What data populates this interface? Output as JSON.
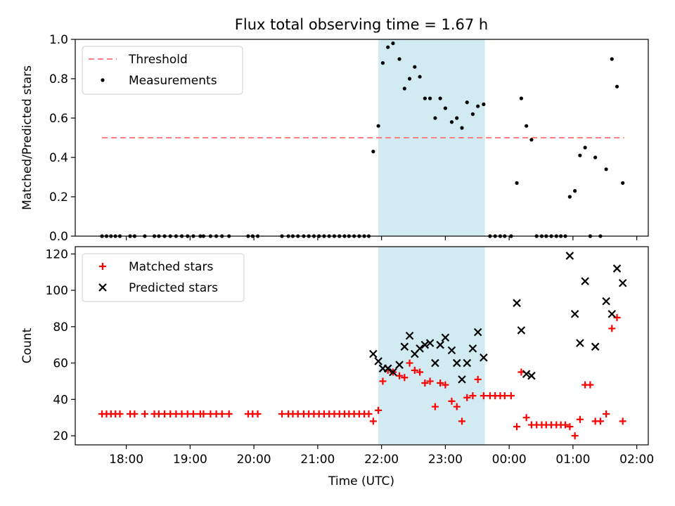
{
  "chart_data": {
    "title": "Flux total observing time = 1.67 h",
    "xlabel": "Time (UTC)",
    "x_ticks": [
      {
        "h": 18,
        "label": "18:00"
      },
      {
        "h": 19,
        "label": "19:00"
      },
      {
        "h": 20,
        "label": "20:00"
      },
      {
        "h": 21,
        "label": "21:00"
      },
      {
        "h": 22,
        "label": "22:00"
      },
      {
        "h": 23,
        "label": "23:00"
      },
      {
        "h": 24,
        "label": "00:00"
      },
      {
        "h": 25,
        "label": "01:00"
      },
      {
        "h": 26,
        "label": "02:00"
      }
    ],
    "xlim": [
      17.2,
      26.18
    ],
    "highlight": {
      "start": 21.95,
      "end": 23.62,
      "color": "#add8e6"
    },
    "panels": [
      {
        "type": "scatter",
        "ylabel": "Matched/Predicted stars",
        "ylim": [
          0,
          1.0
        ],
        "y_ticks": [
          0.0,
          0.2,
          0.4,
          0.6,
          0.8,
          1.0
        ],
        "y_tick_labels": [
          "0.0",
          "0.2",
          "0.4",
          "0.6",
          "0.8",
          "1.0"
        ],
        "legend_position": "upper-left",
        "threshold": {
          "name": "Threshold",
          "value": 0.5,
          "x_range": [
            17.62,
            25.8
          ],
          "color": "#ff8080"
        },
        "series": [
          {
            "name": "Measurements",
            "color": "#000000",
            "points": [
              [
                17.62,
                0
              ],
              [
                17.69,
                0
              ],
              [
                17.76,
                0
              ],
              [
                17.83,
                0
              ],
              [
                17.9,
                0
              ],
              [
                18.06,
                0
              ],
              [
                18.13,
                0
              ],
              [
                18.29,
                0
              ],
              [
                18.44,
                0
              ],
              [
                18.51,
                0
              ],
              [
                18.6,
                0
              ],
              [
                18.69,
                0
              ],
              [
                18.78,
                0
              ],
              [
                18.87,
                0
              ],
              [
                18.96,
                0
              ],
              [
                19.05,
                0
              ],
              [
                19.16,
                0
              ],
              [
                19.21,
                0
              ],
              [
                19.32,
                0
              ],
              [
                19.41,
                0
              ],
              [
                19.5,
                0
              ],
              [
                19.61,
                0
              ],
              [
                19.91,
                0
              ],
              [
                19.98,
                0
              ],
              [
                20.06,
                0
              ],
              [
                20.44,
                0
              ],
              [
                20.54,
                0
              ],
              [
                20.61,
                0
              ],
              [
                20.69,
                0
              ],
              [
                20.78,
                0
              ],
              [
                20.86,
                0
              ],
              [
                20.94,
                0
              ],
              [
                21.02,
                0
              ],
              [
                21.1,
                0
              ],
              [
                21.18,
                0
              ],
              [
                21.26,
                0
              ],
              [
                21.34,
                0
              ],
              [
                21.42,
                0
              ],
              [
                21.49,
                0
              ],
              [
                21.57,
                0
              ],
              [
                21.65,
                0
              ],
              [
                21.73,
                0
              ],
              [
                21.8,
                0
              ],
              [
                21.87,
                0.43
              ],
              [
                21.95,
                0.56
              ],
              [
                22.02,
                0.88
              ],
              [
                22.1,
                0.96
              ],
              [
                22.18,
                0.98
              ],
              [
                22.28,
                0.9
              ],
              [
                22.36,
                0.75
              ],
              [
                22.44,
                0.8
              ],
              [
                22.52,
                0.86
              ],
              [
                22.6,
                0.81
              ],
              [
                22.68,
                0.7
              ],
              [
                22.76,
                0.7
              ],
              [
                22.84,
                0.6
              ],
              [
                22.92,
                0.7
              ],
              [
                23.0,
                0.65
              ],
              [
                23.1,
                0.58
              ],
              [
                23.18,
                0.6
              ],
              [
                23.26,
                0.55
              ],
              [
                23.34,
                0.68
              ],
              [
                23.43,
                0.62
              ],
              [
                23.51,
                0.66
              ],
              [
                23.6,
                0.67
              ],
              [
                23.7,
                0
              ],
              [
                23.78,
                0
              ],
              [
                23.86,
                0
              ],
              [
                23.93,
                0
              ],
              [
                24.03,
                0
              ],
              [
                24.12,
                0.27
              ],
              [
                24.19,
                0.7
              ],
              [
                24.27,
                0.56
              ],
              [
                24.35,
                0.49
              ],
              [
                24.43,
                0
              ],
              [
                24.51,
                0
              ],
              [
                24.58,
                0
              ],
              [
                24.66,
                0
              ],
              [
                24.74,
                0
              ],
              [
                24.81,
                0
              ],
              [
                24.88,
                0
              ],
              [
                24.95,
                0.2
              ],
              [
                25.03,
                0.23
              ],
              [
                25.11,
                0.41
              ],
              [
                25.19,
                0.45
              ],
              [
                25.27,
                0
              ],
              [
                25.35,
                0.4
              ],
              [
                25.43,
                0
              ],
              [
                25.52,
                0.34
              ],
              [
                25.61,
                0.9
              ],
              [
                25.69,
                0.76
              ],
              [
                25.78,
                0.27
              ]
            ]
          }
        ]
      },
      {
        "type": "scatter",
        "ylabel": "Count",
        "ylim": [
          15,
          124
        ],
        "y_ticks": [
          20,
          40,
          60,
          80,
          100,
          120
        ],
        "y_tick_labels": [
          "20",
          "40",
          "60",
          "80",
          "100",
          "120"
        ],
        "legend_position": "upper-left",
        "series": [
          {
            "name": "Matched stars",
            "marker": "plus",
            "color": "#ff0000",
            "points": [
              [
                17.62,
                32
              ],
              [
                17.69,
                32
              ],
              [
                17.76,
                32
              ],
              [
                17.83,
                32
              ],
              [
                17.9,
                32
              ],
              [
                18.06,
                32
              ],
              [
                18.13,
                32
              ],
              [
                18.29,
                32
              ],
              [
                18.44,
                32
              ],
              [
                18.51,
                32
              ],
              [
                18.6,
                32
              ],
              [
                18.69,
                32
              ],
              [
                18.78,
                32
              ],
              [
                18.87,
                32
              ],
              [
                18.96,
                32
              ],
              [
                19.05,
                32
              ],
              [
                19.16,
                32
              ],
              [
                19.21,
                32
              ],
              [
                19.32,
                32
              ],
              [
                19.41,
                32
              ],
              [
                19.5,
                32
              ],
              [
                19.61,
                32
              ],
              [
                19.91,
                32
              ],
              [
                19.98,
                32
              ],
              [
                20.06,
                32
              ],
              [
                20.44,
                32
              ],
              [
                20.54,
                32
              ],
              [
                20.61,
                32
              ],
              [
                20.69,
                32
              ],
              [
                20.78,
                32
              ],
              [
                20.86,
                32
              ],
              [
                20.94,
                32
              ],
              [
                21.02,
                32
              ],
              [
                21.1,
                32
              ],
              [
                21.18,
                32
              ],
              [
                21.26,
                32
              ],
              [
                21.34,
                32
              ],
              [
                21.42,
                32
              ],
              [
                21.49,
                32
              ],
              [
                21.57,
                32
              ],
              [
                21.65,
                32
              ],
              [
                21.73,
                32
              ],
              [
                21.8,
                32
              ],
              [
                21.87,
                28
              ],
              [
                21.95,
                34
              ],
              [
                22.02,
                50
              ],
              [
                22.1,
                56
              ],
              [
                22.18,
                55
              ],
              [
                22.28,
                53
              ],
              [
                22.36,
                52
              ],
              [
                22.44,
                60
              ],
              [
                22.52,
                56
              ],
              [
                22.6,
                55
              ],
              [
                22.68,
                49
              ],
              [
                22.76,
                50
              ],
              [
                22.84,
                36
              ],
              [
                22.92,
                49
              ],
              [
                23.0,
                48
              ],
              [
                23.1,
                39
              ],
              [
                23.18,
                36
              ],
              [
                23.26,
                28
              ],
              [
                23.34,
                41
              ],
              [
                23.43,
                42
              ],
              [
                23.51,
                51
              ],
              [
                23.6,
                42
              ],
              [
                23.7,
                42
              ],
              [
                23.78,
                42
              ],
              [
                23.86,
                42
              ],
              [
                23.93,
                42
              ],
              [
                24.03,
                42
              ],
              [
                24.12,
                25
              ],
              [
                24.19,
                55
              ],
              [
                24.27,
                30
              ],
              [
                24.35,
                26
              ],
              [
                24.43,
                26
              ],
              [
                24.51,
                26
              ],
              [
                24.58,
                26
              ],
              [
                24.66,
                26
              ],
              [
                24.74,
                26
              ],
              [
                24.81,
                26
              ],
              [
                24.88,
                26
              ],
              [
                24.95,
                25
              ],
              [
                25.03,
                20
              ],
              [
                25.11,
                29
              ],
              [
                25.19,
                48
              ],
              [
                25.27,
                48
              ],
              [
                25.35,
                28
              ],
              [
                25.43,
                28
              ],
              [
                25.52,
                32
              ],
              [
                25.61,
                79
              ],
              [
                25.69,
                85
              ],
              [
                25.78,
                28
              ]
            ]
          },
          {
            "name": "Predicted stars",
            "marker": "x",
            "color": "#000000",
            "points": [
              [
                21.87,
                65
              ],
              [
                21.95,
                61
              ],
              [
                22.02,
                57
              ],
              [
                22.1,
                57
              ],
              [
                22.18,
                55
              ],
              [
                22.28,
                59
              ],
              [
                22.36,
                69
              ],
              [
                22.44,
                75
              ],
              [
                22.52,
                65
              ],
              [
                22.6,
                68
              ],
              [
                22.68,
                70
              ],
              [
                22.76,
                71
              ],
              [
                22.84,
                60
              ],
              [
                22.92,
                70
              ],
              [
                23.0,
                74
              ],
              [
                23.1,
                67
              ],
              [
                23.18,
                60
              ],
              [
                23.26,
                51
              ],
              [
                23.34,
                60
              ],
              [
                23.43,
                68
              ],
              [
                23.51,
                77
              ],
              [
                23.6,
                63
              ],
              [
                24.12,
                93
              ],
              [
                24.19,
                78
              ],
              [
                24.27,
                54
              ],
              [
                24.35,
                53
              ],
              [
                24.95,
                119
              ],
              [
                25.03,
                87
              ],
              [
                25.11,
                71
              ],
              [
                25.19,
                105
              ],
              [
                25.35,
                69
              ],
              [
                25.52,
                94
              ],
              [
                25.61,
                87
              ],
              [
                25.69,
                112
              ],
              [
                25.78,
                104
              ]
            ]
          }
        ]
      }
    ]
  }
}
